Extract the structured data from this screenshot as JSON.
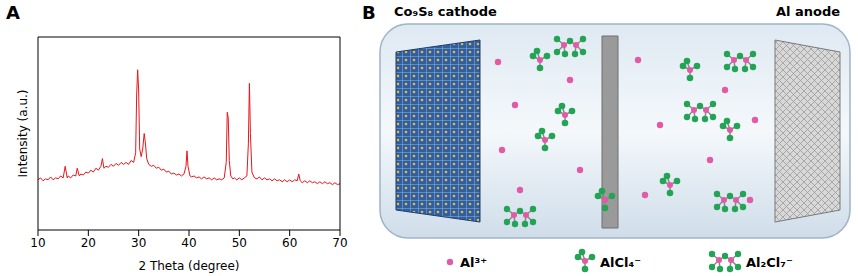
{
  "chart_data": {
    "type": "line",
    "x_label": "2 Theta (degree)",
    "y_label": "Intensity (a.u.)",
    "xlim": [
      10,
      70
    ],
    "xticks": [
      10,
      20,
      30,
      40,
      50,
      60,
      70
    ],
    "ylim": [
      0,
      100
    ],
    "tick_labels": "x",
    "grid": false,
    "color": "#e8151b",
    "x": [
      10,
      10.5,
      11,
      11.5,
      12,
      12.5,
      13,
      13.5,
      14,
      14.5,
      15,
      15.4,
      15.8,
      16,
      16.5,
      17,
      17.5,
      17.8,
      18.2,
      18.5,
      19,
      19.5,
      20,
      20.5,
      21,
      21.5,
      22,
      22.5,
      22.8,
      23.1,
      23.5,
      24,
      24.5,
      25,
      25.5,
      26,
      26.5,
      27,
      27.5,
      28,
      28.5,
      29,
      29.4,
      29.6,
      29.8,
      30.0,
      30.2,
      30.5,
      30.8,
      31.1,
      31.3,
      31.6,
      32,
      32.5,
      33,
      33.5,
      34,
      34.5,
      35,
      35.5,
      36,
      36.5,
      37,
      37.5,
      38,
      38.5,
      39,
      39.4,
      39.6,
      39.8,
      40.2,
      40.5,
      41,
      41.5,
      42,
      42.5,
      43,
      43.5,
      44,
      44.5,
      45,
      45.5,
      46,
      46.5,
      47,
      47.4,
      47.6,
      47.8,
      48.0,
      48.3,
      48.7,
      49,
      49.5,
      50,
      50.5,
      51,
      51.5,
      51.8,
      52.0,
      52.2,
      52.5,
      53,
      53.5,
      54,
      54.5,
      55,
      55.5,
      56,
      56.5,
      57,
      57.5,
      58,
      58.5,
      59,
      59.5,
      60,
      60.5,
      61,
      61.5,
      61.8,
      62.1,
      62.5,
      63,
      63.5,
      64,
      64.5,
      65,
      65.5,
      66,
      66.5,
      67,
      67.5,
      68,
      68.5,
      69,
      69.5,
      70
    ],
    "values": [
      26,
      27,
      25.5,
      26.5,
      26,
      27.5,
      26,
      27,
      26.5,
      28,
      27,
      33,
      27,
      28,
      27,
      28.5,
      28,
      32,
      28,
      29,
      28.5,
      30,
      29.5,
      31,
      30,
      32,
      31,
      33,
      37,
      32,
      33,
      32.5,
      34,
      33,
      34.5,
      33.5,
      35,
      34,
      35,
      34,
      36,
      35,
      40,
      70,
      83,
      72,
      42,
      38,
      42,
      50,
      46,
      37,
      34,
      33,
      33.5,
      32,
      32.5,
      31,
      31.5,
      30,
      30.5,
      29,
      29.5,
      28.5,
      29,
      28,
      29,
      33,
      41,
      33,
      28,
      27.5,
      28,
      27,
      27.5,
      26.5,
      27.5,
      26.5,
      27,
      26,
      27,
      26,
      26.5,
      26,
      27,
      35,
      61,
      58,
      36,
      28,
      26.5,
      27,
      26,
      27,
      26,
      27,
      28,
      45,
      76,
      50,
      30,
      27,
      26.5,
      27.5,
      26,
      27,
      26,
      26.5,
      25.5,
      26.5,
      25.5,
      26,
      25,
      26,
      25,
      26,
      25,
      26,
      25.5,
      29,
      25.5,
      24.5,
      25.5,
      24.5,
      25.5,
      24.5,
      25,
      24,
      25,
      24,
      25,
      24,
      24.5,
      23.5,
      24.5,
      23.5,
      24
    ]
  },
  "panel_a_letter": "A",
  "panel_b": {
    "letter": "B",
    "cathode_label": "Co₉S₈ cathode",
    "anode_label": "Al anode",
    "key_labels": [
      "Al³⁺",
      "AlCl₄⁻",
      "Al₂Cl₇⁻"
    ]
  }
}
